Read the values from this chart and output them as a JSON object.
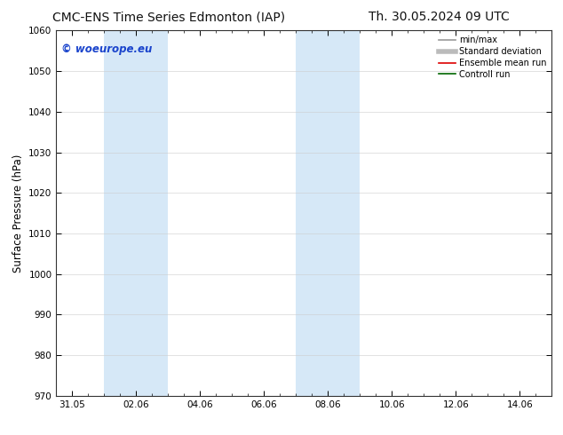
{
  "title_left": "CMC-ENS Time Series Edmonton (IAP)",
  "title_right": "Th. 30.05.2024 09 UTC",
  "ylabel": "Surface Pressure (hPa)",
  "ylim": [
    970,
    1060
  ],
  "yticks": [
    970,
    980,
    990,
    1000,
    1010,
    1020,
    1030,
    1040,
    1050,
    1060
  ],
  "xtick_labels": [
    "31.05",
    "02.06",
    "04.06",
    "06.06",
    "08.06",
    "10.06",
    "12.06",
    "14.06"
  ],
  "xtick_positions": [
    0,
    2,
    4,
    6,
    8,
    10,
    12,
    14
  ],
  "xlim_days": [
    -0.5,
    15.0
  ],
  "shaded_bands": [
    {
      "x_start": 1.0,
      "x_end": 3.0
    },
    {
      "x_start": 7.0,
      "x_end": 9.0
    }
  ],
  "shaded_color": "#d6e8f7",
  "bg_color": "#ffffff",
  "watermark_text": "© woeurope.eu",
  "watermark_color": "#1a44cc",
  "legend_entries": [
    {
      "label": "min/max",
      "color": "#999999",
      "lw": 1.2
    },
    {
      "label": "Standard deviation",
      "color": "#bbbbbb",
      "lw": 4
    },
    {
      "label": "Ensemble mean run",
      "color": "#dd0000",
      "lw": 1.2
    },
    {
      "label": "Controll run",
      "color": "#006600",
      "lw": 1.2
    }
  ],
  "title_fontsize": 10,
  "axis_label_fontsize": 8.5,
  "tick_fontsize": 7.5,
  "legend_fontsize": 7
}
